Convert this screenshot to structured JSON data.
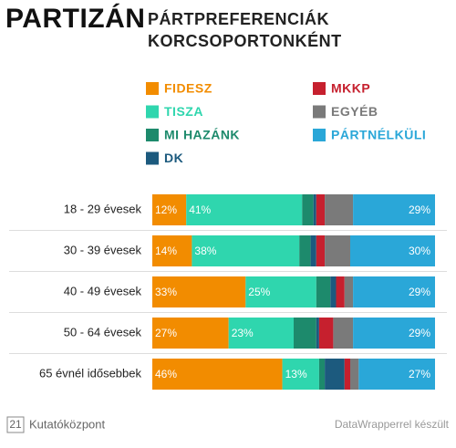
{
  "chart_data": {
    "type": "stacked-bar-horizontal",
    "logo": "PARTIZÁN",
    "title": "PÁRTPREFERENCIÁK KORCSOPORTONKÉNT",
    "categories": [
      "18 - 29 évesek",
      "30 - 39 évesek",
      "40 - 49 évesek",
      "50 - 64 évesek",
      "65 évnél idősebbek"
    ],
    "xlim": [
      0,
      100
    ],
    "series": [
      {
        "name": "FIDESZ",
        "color": "#f28c00",
        "values": [
          12,
          14,
          33,
          27,
          46
        ],
        "value_labels": [
          "12%",
          "14%",
          "33%",
          "27%",
          "46%"
        ]
      },
      {
        "name": "TISZA",
        "color": "#2fd6ae",
        "values": [
          41,
          38,
          25,
          23,
          13
        ],
        "value_labels": [
          "41%",
          "38%",
          "25%",
          "23%",
          "13%"
        ]
      },
      {
        "name": "MI HAZÁNK",
        "color": "#1d8a6c",
        "values": [
          4,
          4,
          5,
          8,
          2
        ]
      },
      {
        "name": "DK",
        "color": "#1c5a7e",
        "values": [
          1,
          2,
          2,
          1,
          7
        ]
      },
      {
        "name": "MKKP",
        "color": "#c6202e",
        "values": [
          3,
          3,
          3,
          5,
          2
        ]
      },
      {
        "name": "EGYÉB",
        "color": "#7a7a7a",
        "values": [
          10,
          9,
          3,
          7,
          3
        ]
      },
      {
        "name": "PÁRTNÉLKÜLI",
        "color": "#2aa7d8",
        "values": [
          29,
          30,
          29,
          29,
          27
        ],
        "value_labels": [
          "29%",
          "30%",
          "29%",
          "29%",
          "27%"
        ]
      }
    ],
    "source_left": {
      "number": "21",
      "text": "Kutatóközpont"
    },
    "source_right": "DataWrapperrel készült"
  }
}
